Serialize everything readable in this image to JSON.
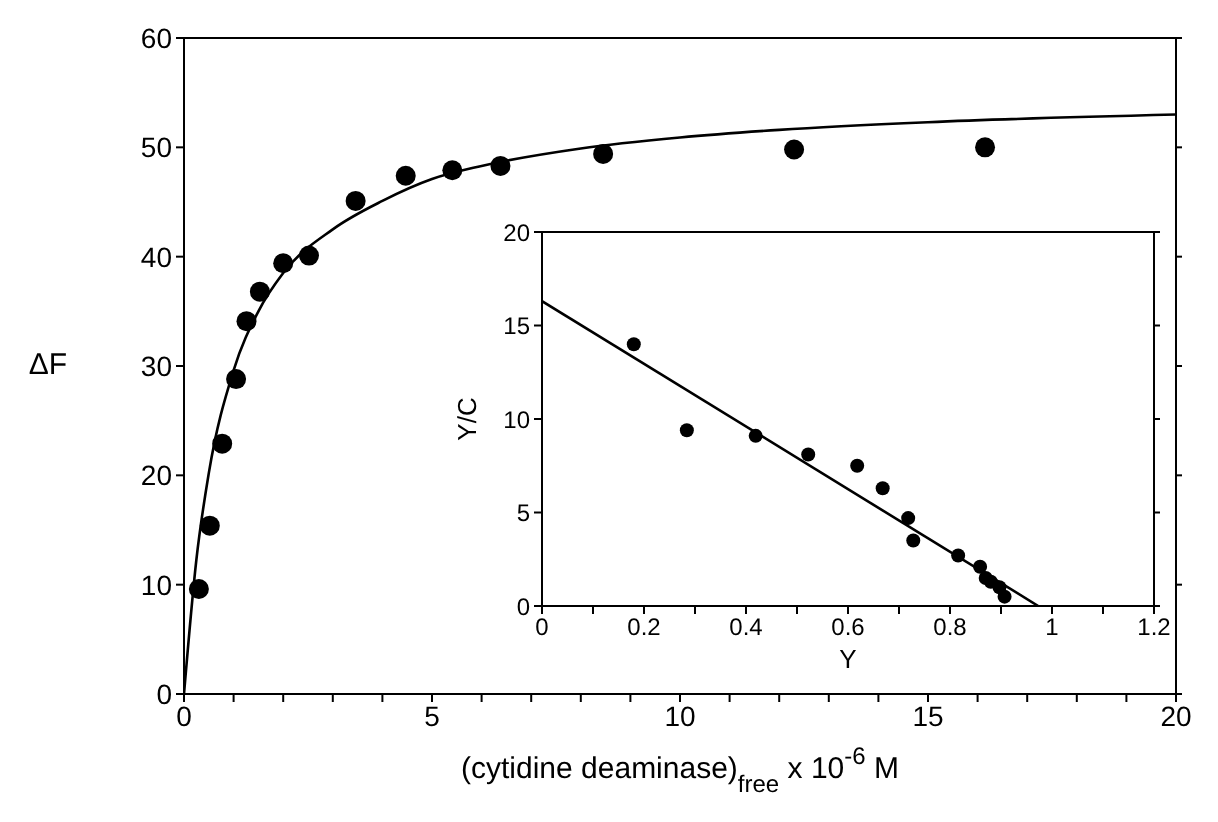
{
  "chart_data": [
    {
      "type": "scatter",
      "xlabel": "(cytidine deaminase)$_{free}$ x 10$^{-6}$ M",
      "ylabel": "ΔF",
      "xlim": [
        0,
        20
      ],
      "ylim": [
        0,
        60
      ],
      "xticks": [
        0,
        {
          "value": 1,
          "label": null
        },
        {
          "value": 2,
          "label": null
        },
        {
          "value": 3,
          "label": null
        },
        {
          "value": 4,
          "label": null
        },
        5,
        {
          "value": 6,
          "label": null
        },
        {
          "value": 7,
          "label": null
        },
        {
          "value": 8,
          "label": null
        },
        {
          "value": 9,
          "label": null
        },
        10,
        {
          "value": 11,
          "label": null
        },
        {
          "value": 12,
          "label": null
        },
        {
          "value": 13,
          "label": null
        },
        {
          "value": 14,
          "label": null
        },
        15,
        {
          "value": 16,
          "label": null
        },
        {
          "value": 17,
          "label": null
        },
        {
          "value": 18,
          "label": null
        },
        {
          "value": 19,
          "label": null
        },
        20
      ],
      "yticks": [
        0,
        10,
        20,
        30,
        40,
        50,
        60
      ],
      "series": [
        {
          "type": "scatter",
          "color": "#000000",
          "marker": "circle",
          "x": [
            0.3,
            0.52,
            0.77,
            1.05,
            1.26,
            1.53,
            2.0,
            2.52,
            3.46,
            4.47,
            5.41,
            6.38,
            8.45,
            12.3,
            16.15
          ],
          "values": [
            9.6,
            15.4,
            22.9,
            28.8,
            34.1,
            36.8,
            39.4,
            40.1,
            45.1,
            47.4,
            47.9,
            48.3,
            49.4,
            49.8,
            50.0
          ]
        },
        {
          "type": "line",
          "color": "#000000",
          "marker": "none",
          "x": [
            0,
            0.25,
            0.5,
            1,
            1.5,
            2,
            3,
            4,
            5,
            6,
            8,
            10,
            12,
            15,
            20
          ],
          "values": [
            0,
            12.3,
            20.2,
            29.6,
            35.0,
            38.5,
            42.5,
            45.1,
            47.1,
            48.3,
            49.9,
            50.9,
            51.6,
            52.3,
            53.0
          ]
        }
      ]
    },
    {
      "type": "scatter",
      "xlabel": "Y",
      "ylabel": "Y/C",
      "xlim": [
        0,
        1.2
      ],
      "ylim": [
        0,
        20
      ],
      "xticks": [
        0,
        {
          "value": 0.1,
          "label": null
        },
        0.2,
        {
          "value": 0.3,
          "label": null
        },
        0.4,
        {
          "value": 0.5,
          "label": null
        },
        0.6,
        {
          "value": 0.7,
          "label": null
        },
        0.8,
        {
          "value": 0.9,
          "label": null
        },
        1,
        {
          "value": 1.1,
          "label": null
        },
        1.2
      ],
      "yticks": [
        0,
        5,
        10,
        15,
        20
      ],
      "series": [
        {
          "type": "scatter",
          "color": "#000000",
          "marker": "circle",
          "x": [
            0.18,
            0.284,
            0.419,
            0.522,
            0.618,
            0.668,
            0.718,
            0.728,
            0.816,
            0.859,
            0.87,
            0.88,
            0.897,
            0.907
          ],
          "values": [
            14.0,
            9.4,
            9.1,
            8.1,
            7.5,
            6.3,
            4.7,
            3.5,
            2.7,
            2.1,
            1.5,
            1.3,
            1.0,
            0.5
          ]
        },
        {
          "type": "line",
          "color": "#000000",
          "marker": "none",
          "x": [
            0,
            0.973
          ],
          "values": [
            16.3,
            0
          ]
        }
      ]
    }
  ]
}
